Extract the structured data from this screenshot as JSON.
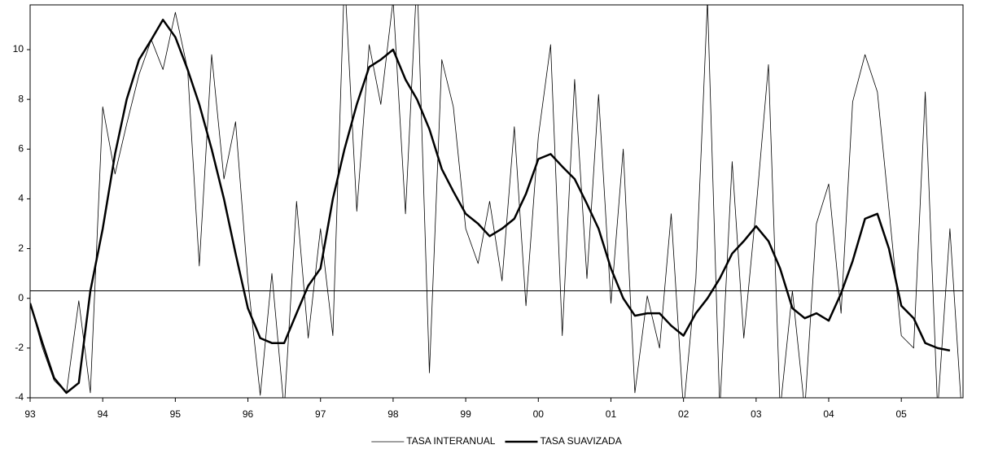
{
  "chart_data": {
    "type": "line",
    "x": [
      1993,
      1993.17,
      1993.33,
      1993.5,
      1993.67,
      1993.83,
      1994,
      1994.17,
      1994.33,
      1994.5,
      1994.67,
      1994.83,
      1995,
      1995.17,
      1995.33,
      1995.5,
      1995.67,
      1995.83,
      1996,
      1996.17,
      1996.33,
      1996.5,
      1996.67,
      1996.83,
      1997,
      1997.17,
      1997.33,
      1997.5,
      1997.67,
      1997.83,
      1998,
      1998.17,
      1998.33,
      1998.5,
      1998.67,
      1998.83,
      1999,
      1999.17,
      1999.33,
      1999.5,
      1999.67,
      1999.83,
      2000,
      2000.17,
      2000.33,
      2000.5,
      2000.67,
      2000.83,
      2001,
      2001.17,
      2001.33,
      2001.5,
      2001.67,
      2001.83,
      2002,
      2002.17,
      2002.33,
      2002.5,
      2002.67,
      2002.83,
      2003,
      2003.17,
      2003.33,
      2003.5,
      2003.67,
      2003.83,
      2004,
      2004.17,
      2004.33,
      2004.5,
      2004.67,
      2004.83,
      2005,
      2005.17,
      2005.33,
      2005.5,
      2005.67,
      2005.83
    ],
    "series": [
      {
        "name": "TASA INTERANUAL",
        "color": "#000000",
        "width": 0.8,
        "values": [
          -0.2,
          -2,
          -3.3,
          -3.8,
          -0.1,
          -3.8,
          7.7,
          5,
          7,
          9,
          10.4,
          9.2,
          11.5,
          9.2,
          1.3,
          9.8,
          4.8,
          7.1,
          0.7,
          -3.9,
          1,
          -4.5,
          3.9,
          -1.6,
          2.8,
          -1.5,
          13,
          3.5,
          10.2,
          7.8,
          12,
          3.4,
          13,
          -3,
          9.6,
          7.7,
          2.8,
          1.4,
          3.9,
          0.7,
          6.9,
          -0.3,
          6.5,
          10.2,
          -1.5,
          8.8,
          0.8,
          8.2,
          -0.2,
          6,
          -3.8,
          0.1,
          -2,
          3.4,
          -4.5,
          0.8,
          12,
          -4.5,
          5.5,
          -1.6,
          3.6,
          9.4,
          -4.5,
          0.3,
          -4.5,
          3,
          4.6,
          -0.6,
          7.9,
          9.8,
          8.3,
          3.6,
          -1.5,
          -2,
          8.3,
          -4.5,
          2.8,
          -4.5
        ]
      },
      {
        "name": "TASA SUAVIZADA",
        "color": "#000000",
        "width": 2.5,
        "values": [
          -0.2,
          -1.8,
          -3.2,
          -3.8,
          -3.4,
          0.3,
          2.8,
          5.8,
          8,
          9.6,
          10.4,
          11.2,
          10.5,
          9.2,
          7.8,
          6,
          4,
          1.8,
          -0.4,
          -1.6,
          -1.8,
          -1.8,
          -0.6,
          0.5,
          1.2,
          4,
          6,
          7.8,
          9.3,
          9.6,
          10,
          8.8,
          8,
          6.8,
          5.2,
          4.3,
          3.4,
          3,
          2.5,
          2.8,
          3.2,
          4.2,
          5.6,
          5.8,
          5.3,
          4.8,
          3.8,
          2.8,
          1.2,
          0,
          -0.7,
          -0.6,
          -0.6,
          -1.1,
          -1.5,
          -0.6,
          0,
          0.8,
          1.8,
          2.3,
          2.9,
          2.3,
          1.2,
          -0.4,
          -0.8,
          -0.6,
          -0.9,
          0.2,
          1.5,
          3.2,
          3.4,
          2,
          -0.3,
          -0.8,
          -1.8,
          -2,
          -2.1,
          null
        ]
      }
    ],
    "xlim": [
      1993,
      2005.85
    ],
    "xticks": [
      {
        "value": 1993,
        "label": "93"
      },
      {
        "value": 1994,
        "label": "94"
      },
      {
        "value": 1995,
        "label": "95"
      },
      {
        "value": 1996,
        "label": "96"
      },
      {
        "value": 1997,
        "label": "97"
      },
      {
        "value": 1998,
        "label": "98"
      },
      {
        "value": 1999,
        "label": "99"
      },
      {
        "value": 2000,
        "label": "00"
      },
      {
        "value": 2001,
        "label": "01"
      },
      {
        "value": 2002,
        "label": "02"
      },
      {
        "value": 2003,
        "label": "03"
      },
      {
        "value": 2004,
        "label": "04"
      },
      {
        "value": 2005,
        "label": "05"
      }
    ],
    "ylim": [
      -4,
      11.8
    ],
    "yticks": [
      -4,
      -2,
      0,
      2,
      4,
      6,
      8,
      10
    ],
    "reference_line": 0.3,
    "legend": "bottom"
  }
}
